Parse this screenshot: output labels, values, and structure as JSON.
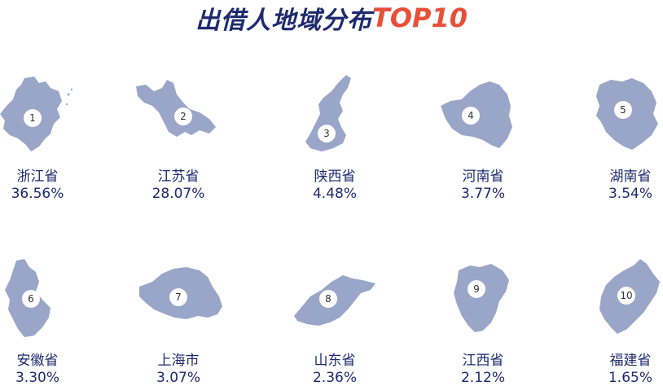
{
  "title": {
    "main": "出借人地域分布",
    "highlight": "TOP10"
  },
  "colors": {
    "map_fill": "#9aa6c8",
    "text": "#1d2a6e",
    "highlight": "#e8503a"
  },
  "chart_data": {
    "type": "table",
    "title": "出借人地域分布TOP10",
    "columns": [
      "rank",
      "province",
      "percent"
    ],
    "rows": [
      {
        "rank": "1",
        "province": "浙江省",
        "percent": "36.56%"
      },
      {
        "rank": "2",
        "province": "江苏省",
        "percent": "28.07%"
      },
      {
        "rank": "3",
        "province": "陕西省",
        "percent": "4.48%"
      },
      {
        "rank": "4",
        "province": "河南省",
        "percent": "3.77%"
      },
      {
        "rank": "5",
        "province": "湖南省",
        "percent": "3.54%"
      },
      {
        "rank": "6",
        "province": "安徽省",
        "percent": "3.30%"
      },
      {
        "rank": "7",
        "province": "上海市",
        "percent": "3.07%"
      },
      {
        "rank": "8",
        "province": "山东省",
        "percent": "2.36%"
      },
      {
        "rank": "9",
        "province": "江西省",
        "percent": "2.12%"
      },
      {
        "rank": "10",
        "province": "福建省",
        "percent": "1.65%"
      }
    ]
  }
}
